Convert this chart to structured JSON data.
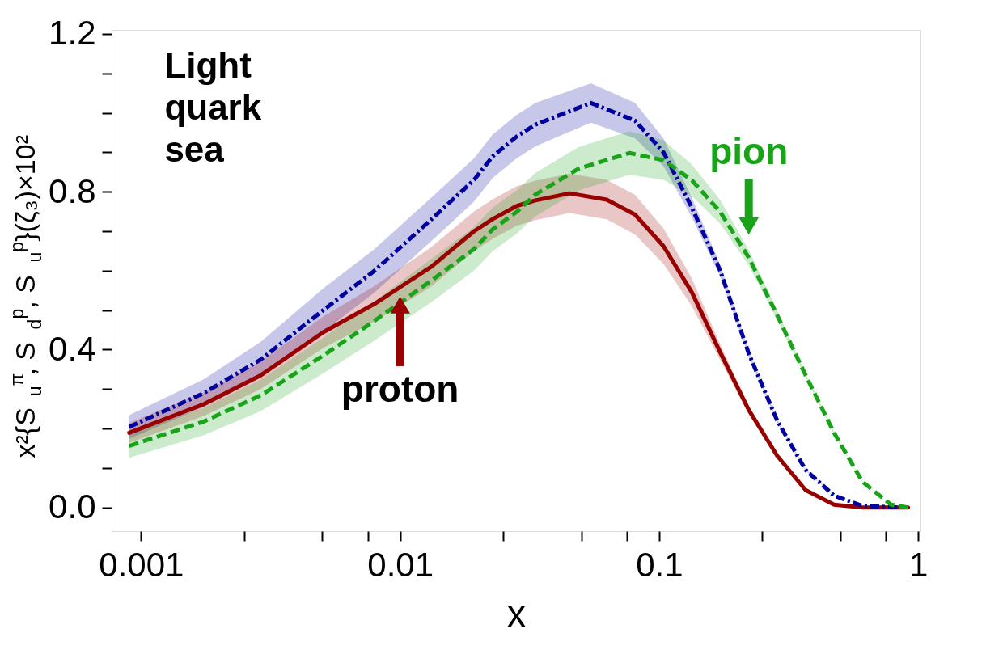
{
  "chart_data": {
    "type": "line",
    "ylabel": "x²{S$_{u}$$^{π}$, S$_{d}$$^{p}$, S$_{u}$$^{p}$}(ζ₃)×10²",
    "xlabel": "x",
    "log": "x",
    "xlim": [
      0.00077,
      1.02
    ],
    "ylim": [
      -0.06,
      1.21
    ],
    "xticks": [
      0.001,
      {
        "value": 0.0025,
        "label": null
      },
      {
        "value": 0.005,
        "label": null
      },
      {
        "value": 0.0075,
        "label": null
      },
      0.01,
      {
        "value": 0.025,
        "label": null
      },
      {
        "value": 0.05,
        "label": null
      },
      {
        "value": 0.075,
        "label": null
      },
      0.1,
      {
        "value": 0.25,
        "label": null
      },
      {
        "value": 0.5,
        "label": null
      },
      {
        "value": 0.75,
        "label": null
      },
      1
    ],
    "yticks": [
      {
        "value": 0,
        "label": "0.0"
      },
      {
        "value": 0.1,
        "label": null
      },
      {
        "value": 0.2,
        "label": null
      },
      {
        "value": 0.3,
        "label": null
      },
      0.4,
      {
        "value": 0.5,
        "label": null
      },
      {
        "value": 0.6,
        "label": null
      },
      {
        "value": 0.7,
        "label": null
      },
      0.8,
      {
        "value": 0.9,
        "label": null
      },
      {
        "value": 1.0,
        "label": null
      },
      {
        "value": 1.1,
        "label": null
      },
      1.2
    ],
    "series": [
      {
        "color": "#00009e",
        "line_style": "dashdot",
        "x": [
          0.0009,
          0.00175,
          0.0029,
          0.00505,
          0.00797,
          0.0132,
          0.0193,
          0.0228,
          0.0282,
          0.0333,
          0.0545,
          0.0807,
          0.1039,
          0.1337,
          0.172,
          0.2217,
          0.2854,
          0.3675,
          0.4733,
          0.6094,
          0.85
        ],
        "values": [
          0.204,
          0.29,
          0.375,
          0.5,
          0.6,
          0.73,
          0.83,
          0.89,
          0.94,
          0.97,
          1.025,
          0.98,
          0.9,
          0.76,
          0.6,
          0.39,
          0.22,
          0.095,
          0.03,
          0.004,
          0
        ],
        "lower": [
          0.174,
          0.255,
          0.33,
          0.445,
          0.545,
          0.675,
          0.775,
          0.835,
          0.885,
          0.915,
          0.975,
          0.935,
          0.865,
          0.735,
          0.585,
          0.382,
          0.216,
          0.093,
          0.029,
          0.004,
          0
        ],
        "upper": [
          0.234,
          0.325,
          0.42,
          0.555,
          0.655,
          0.785,
          0.885,
          0.945,
          0.995,
          1.025,
          1.075,
          1.025,
          0.935,
          0.785,
          0.615,
          0.398,
          0.224,
          0.097,
          0.031,
          0.004,
          0
        ]
      },
      {
        "color": "#990000",
        "line_style": "solid",
        "x": [
          0.0009,
          0.00175,
          0.0029,
          0.00505,
          0.00797,
          0.0132,
          0.0193,
          0.0228,
          0.0282,
          0.0333,
          0.0451,
          0.0627,
          0.0807,
          0.1039,
          0.1337,
          0.172,
          0.2217,
          0.2854,
          0.3675,
          0.4733,
          0.6094,
          0.913
        ],
        "values": [
          0.189,
          0.262,
          0.335,
          0.444,
          0.516,
          0.61,
          0.7,
          0.731,
          0.764,
          0.778,
          0.796,
          0.78,
          0.742,
          0.662,
          0.545,
          0.393,
          0.247,
          0.131,
          0.044,
          0.007,
          0,
          0
        ],
        "lower": [
          0.164,
          0.232,
          0.3,
          0.404,
          0.471,
          0.56,
          0.65,
          0.681,
          0.714,
          0.728,
          0.746,
          0.73,
          0.692,
          0.617,
          0.51,
          0.373,
          0.237,
          0.126,
          0.042,
          0.007,
          0,
          0
        ],
        "upper": [
          0.214,
          0.292,
          0.37,
          0.484,
          0.561,
          0.66,
          0.75,
          0.781,
          0.814,
          0.828,
          0.846,
          0.83,
          0.792,
          0.707,
          0.58,
          0.413,
          0.257,
          0.136,
          0.046,
          0.007,
          0,
          0
        ]
      },
      {
        "color": "#19a319",
        "line_style": "dashed",
        "x": [
          0.0009,
          0.00175,
          0.0029,
          0.00505,
          0.00797,
          0.0132,
          0.0193,
          0.0228,
          0.0282,
          0.0333,
          0.0487,
          0.0767,
          0.1039,
          0.1337,
          0.172,
          0.2217,
          0.2854,
          0.3675,
          0.4733,
          0.6094,
          0.785,
          0.913
        ],
        "values": [
          0.156,
          0.218,
          0.284,
          0.385,
          0.473,
          0.575,
          0.655,
          0.705,
          0.749,
          0.793,
          0.858,
          0.898,
          0.88,
          0.829,
          0.749,
          0.633,
          0.487,
          0.335,
          0.189,
          0.065,
          0.007,
          0
        ],
        "lower": [
          0.126,
          0.183,
          0.244,
          0.34,
          0.423,
          0.52,
          0.6,
          0.65,
          0.694,
          0.738,
          0.803,
          0.843,
          0.83,
          0.789,
          0.719,
          0.613,
          0.475,
          0.329,
          0.186,
          0.064,
          0.007,
          0
        ],
        "upper": [
          0.186,
          0.253,
          0.324,
          0.43,
          0.523,
          0.63,
          0.71,
          0.76,
          0.804,
          0.848,
          0.913,
          0.953,
          0.93,
          0.869,
          0.779,
          0.653,
          0.499,
          0.341,
          0.192,
          0.066,
          0.007,
          0
        ]
      }
    ],
    "annotations": [
      "Light\nquark\nsea",
      {
        "text": "proton",
        "x": 0.01,
        "y": 0.558
      },
      {
        "text": "pion",
        "x": 0.2217,
        "y": 0.633
      }
    ]
  }
}
